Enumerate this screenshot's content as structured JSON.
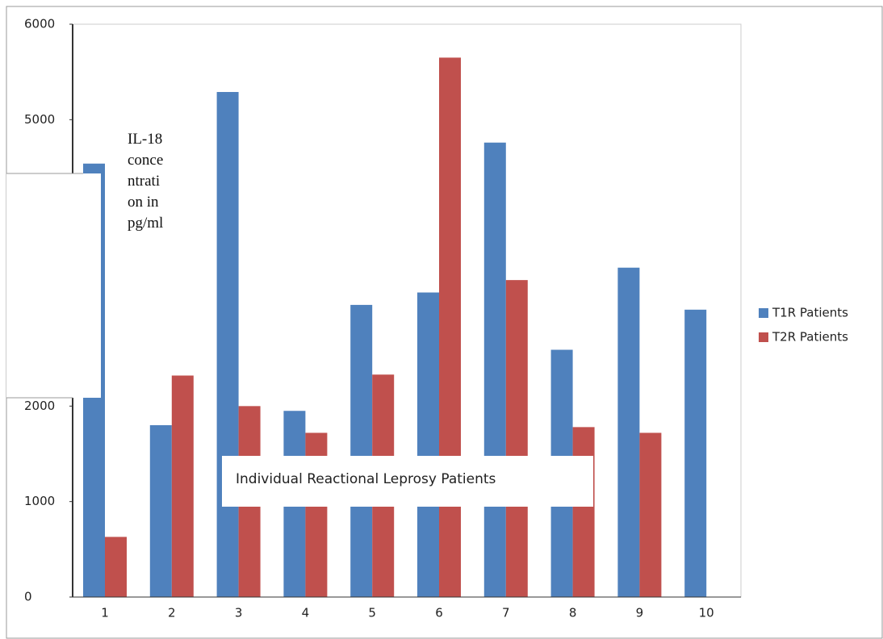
{
  "chart_data": {
    "type": "bar",
    "y_label": "IL-18 concentration in pg/ml",
    "x_label": "Individual Reactional Leprosy Patients",
    "categories": [
      "1",
      "2",
      "3",
      "4",
      "5",
      "6",
      "7",
      "8",
      "9",
      "10"
    ],
    "series": [
      {
        "name": "T1R Patients",
        "color": "#4f81bd",
        "values": [
          4540,
          1800,
          5290,
          1950,
          3060,
          3190,
          4760,
          2590,
          3450,
          3010
        ]
      },
      {
        "name": "T2R Patients",
        "color": "#c0504d",
        "values": [
          630,
          2320,
          2000,
          1720,
          2330,
          5650,
          3320,
          1780,
          1720,
          null
        ]
      }
    ],
    "ylim": [
      0,
      6000
    ],
    "yticks": [
      0,
      1000,
      2000,
      5000,
      6000
    ],
    "legend": "right"
  }
}
